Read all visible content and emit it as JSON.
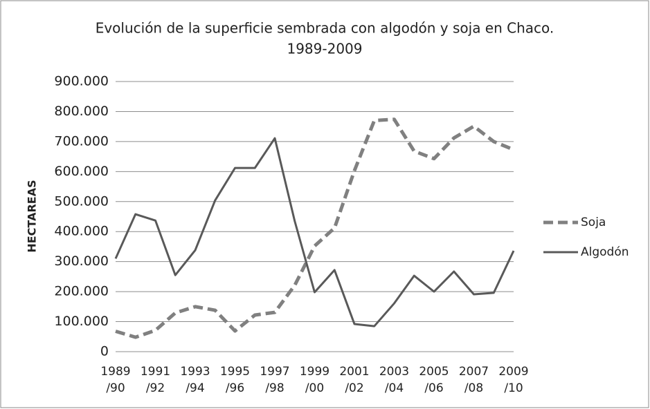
{
  "chart_data": {
    "type": "line",
    "title": "Evolución de la superficie sembrada con algodón y soja en Chaco.",
    "subtitle": "1989-2009",
    "y_label": "HECTAREAS",
    "categories": [
      "1989 /90",
      null,
      "1991 /92",
      null,
      "1993 /94",
      null,
      "1995 /96",
      null,
      "1997 /98",
      null,
      "1999 /00",
      null,
      "2001 /02",
      null,
      "2003 /04",
      null,
      "2005 /06",
      null,
      "2007 /08",
      null,
      "2009 /10"
    ],
    "series": [
      {
        "name": "Soja",
        "color": "#808080",
        "dashed": true,
        "values": [
          68000,
          48000,
          71000,
          129000,
          150000,
          138000,
          69000,
          122000,
          131000,
          221000,
          352000,
          412000,
          603000,
          770000,
          774000,
          668000,
          643000,
          712000,
          751000,
          700000,
          673000
        ]
      },
      {
        "name": "Algodón",
        "color": "#595959",
        "dashed": false,
        "values": [
          310000,
          458000,
          437000,
          255000,
          338000,
          504000,
          612000,
          612000,
          711000,
          435000,
          198000,
          272000,
          92000,
          85000,
          161000,
          253000,
          200000,
          267000,
          191000,
          196000,
          336000
        ]
      }
    ],
    "ylim": [
      0,
      900000
    ],
    "yticks": [
      0,
      {
        "value": 100000,
        "label": "100.000"
      },
      {
        "value": 200000,
        "label": "200.000"
      },
      {
        "value": 300000,
        "label": "300.000"
      },
      {
        "value": 400000,
        "label": "400.000"
      },
      {
        "value": 500000,
        "label": "500.000"
      },
      {
        "value": 600000,
        "label": "600.000"
      },
      {
        "value": 700000,
        "label": "700.000"
      },
      {
        "value": 800000,
        "label": "800.000"
      },
      {
        "value": 900000,
        "label": "900.000"
      }
    ],
    "grid": true,
    "legend": "right"
  }
}
